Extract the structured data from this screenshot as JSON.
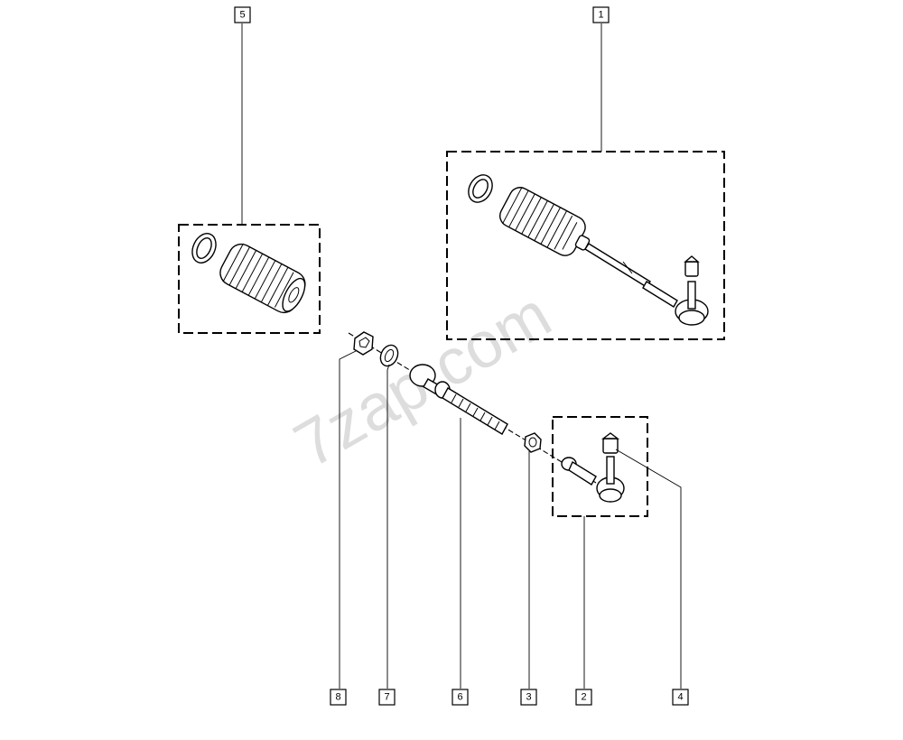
{
  "watermark": "7zap.com",
  "callouts": [
    {
      "id": "1",
      "label": "1"
    },
    {
      "id": "2",
      "label": "2"
    },
    {
      "id": "3",
      "label": "3"
    },
    {
      "id": "4",
      "label": "4"
    },
    {
      "id": "5",
      "label": "5"
    },
    {
      "id": "6",
      "label": "6"
    },
    {
      "id": "7",
      "label": "7"
    },
    {
      "id": "8",
      "label": "8"
    }
  ]
}
